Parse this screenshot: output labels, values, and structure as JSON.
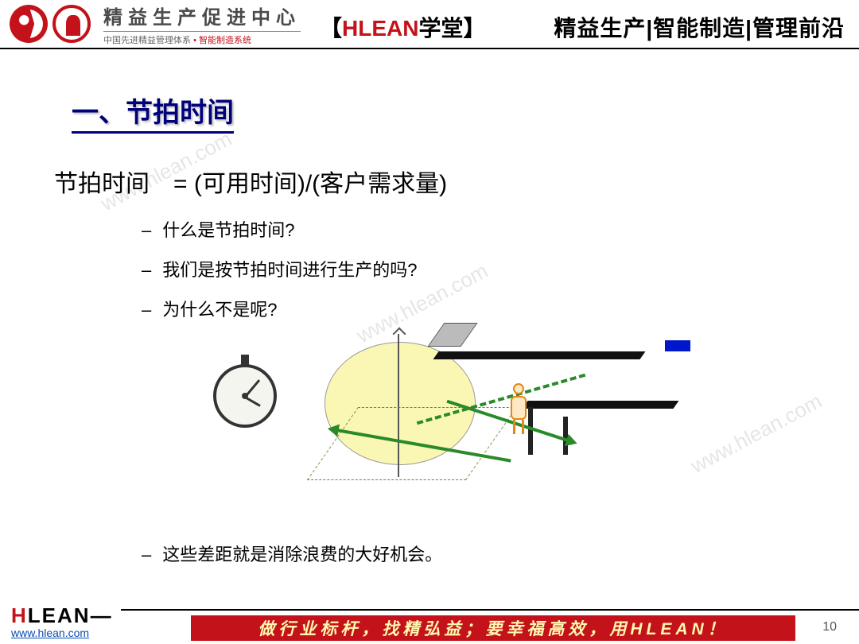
{
  "colors": {
    "accent_red": "#c4121a",
    "title_blue": "#00007a",
    "footer_text": "#fff8b0",
    "link_blue": "#0a4db0",
    "watermark_gray": "rgba(0,0,0,.10)",
    "illus_yellow": "rgba(247,243,140,.65)",
    "illus_green": "#2a8a2a",
    "illus_person": "#e0891a",
    "illus_blue": "#0018cc"
  },
  "header": {
    "logo_title": "精益生产促进中心",
    "logo_sub_left": "中国先进精益管理体系",
    "logo_sub_right": "智能制造系统",
    "center_bracket_open": "【",
    "center_accent": "HLEAN",
    "center_rest": "学堂",
    "center_bracket_close": "】",
    "right_nav": "精益生产|智能制造|管理前沿"
  },
  "section": {
    "title": "一、节拍时间",
    "formula": "节拍时间　=  (可用时间)/(客户需求量)",
    "bullets": [
      "什么是节拍时间?",
      "我们是按节拍时间进行生产的吗?",
      "为什么不是呢?"
    ],
    "bottom_bullet": "这些差距就是消除浪费的大好机会。"
  },
  "watermark": "www.hlean.com",
  "footer": {
    "brand_h": "H",
    "brand_rest": "LEAN",
    "url": "www.hlean.com",
    "slogan": "做行业标杆，找精弘益；要幸福高效，用HLEAN！",
    "page": "10"
  }
}
